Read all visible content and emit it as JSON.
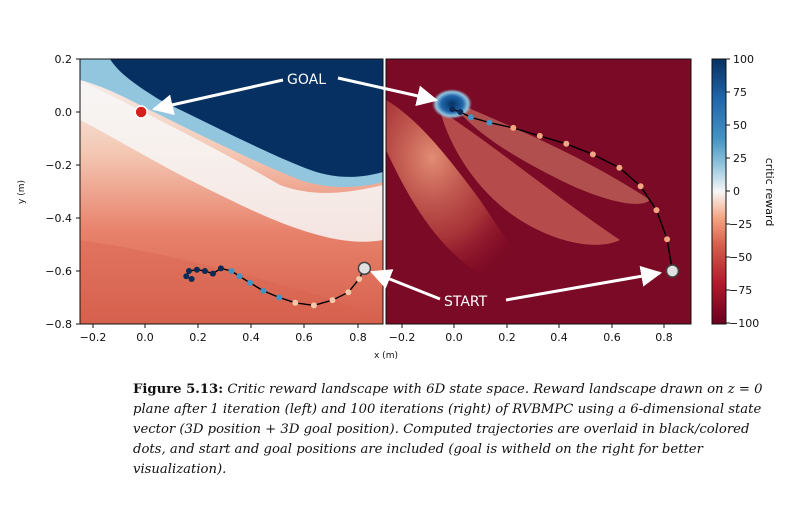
{
  "chart_data": [
    {
      "type": "heatmap",
      "panel": "left",
      "xlim": [
        -0.25,
        0.89
      ],
      "ylim": [
        -0.8,
        0.2
      ],
      "xticks": [
        "−0.2",
        "0.0",
        "0.2",
        "0.4",
        "0.6",
        "0.8"
      ],
      "yticks": [
        "0.2",
        "0.0",
        "−0.2",
        "−0.4",
        "−0.6",
        "−0.8"
      ],
      "xlabel": "",
      "ylabel": "y (m)",
      "start": {
        "x": 0.82,
        "y": -0.59
      },
      "goal": {
        "x": -0.02,
        "y": 0.0
      },
      "trajectory": [
        [
          0.82,
          -0.59
        ],
        [
          0.8,
          -0.63
        ],
        [
          0.76,
          -0.68
        ],
        [
          0.7,
          -0.71
        ],
        [
          0.63,
          -0.73
        ],
        [
          0.56,
          -0.72
        ],
        [
          0.5,
          -0.7
        ],
        [
          0.44,
          -0.675
        ],
        [
          0.39,
          -0.645
        ],
        [
          0.35,
          -0.62
        ],
        [
          0.32,
          -0.6
        ],
        [
          0.28,
          -0.59
        ],
        [
          0.25,
          -0.61
        ],
        [
          0.22,
          -0.6
        ],
        [
          0.19,
          -0.595
        ],
        [
          0.16,
          -0.6
        ],
        [
          0.15,
          -0.62
        ],
        [
          0.17,
          -0.63
        ]
      ],
      "iterations": "1"
    },
    {
      "type": "heatmap",
      "panel": "right",
      "xlim": [
        -0.26,
        0.89
      ],
      "ylim": [
        -0.8,
        0.2
      ],
      "xticks": [
        "−0.2",
        "0.0",
        "0.2",
        "0.4",
        "0.6",
        "0.8"
      ],
      "xlabel": "x (m)",
      "start": {
        "x": 0.82,
        "y": -0.6
      },
      "trajectory": [
        [
          0.82,
          -0.6
        ],
        [
          0.8,
          -0.48
        ],
        [
          0.76,
          -0.37
        ],
        [
          0.7,
          -0.28
        ],
        [
          0.62,
          -0.21
        ],
        [
          0.52,
          -0.16
        ],
        [
          0.42,
          -0.12
        ],
        [
          0.32,
          -0.09
        ],
        [
          0.22,
          -0.06
        ],
        [
          0.13,
          -0.04
        ],
        [
          0.06,
          -0.02
        ],
        [
          0.02,
          0.0
        ],
        [
          -0.01,
          0.01
        ]
      ],
      "iterations": "100"
    }
  ],
  "colorbar": {
    "label": "critic reward",
    "ticks": [
      "100",
      "75",
      "50",
      "25",
      "0",
      "−25",
      "−50",
      "−75",
      "−100"
    ],
    "range": [
      -100,
      100
    ],
    "colors": {
      "low": "#67001f",
      "mid": "#f7f7f7",
      "high": "#053061"
    }
  },
  "annotations": {
    "goal": "GOAL",
    "start": "START"
  },
  "caption": {
    "label": "Figure 5.13:",
    "text": "Critic reward landscape with 6D state space. Reward landscape drawn on z = 0 plane after 1 iteration (left) and 100 iterations (right) of RVBMPC using a 6-dimensional state vector (3D position + 3D goal position). Computed trajectories are overlaid in black/colored dots, and start and goal positions are included (goal is witheld on the right for better visualization)."
  }
}
